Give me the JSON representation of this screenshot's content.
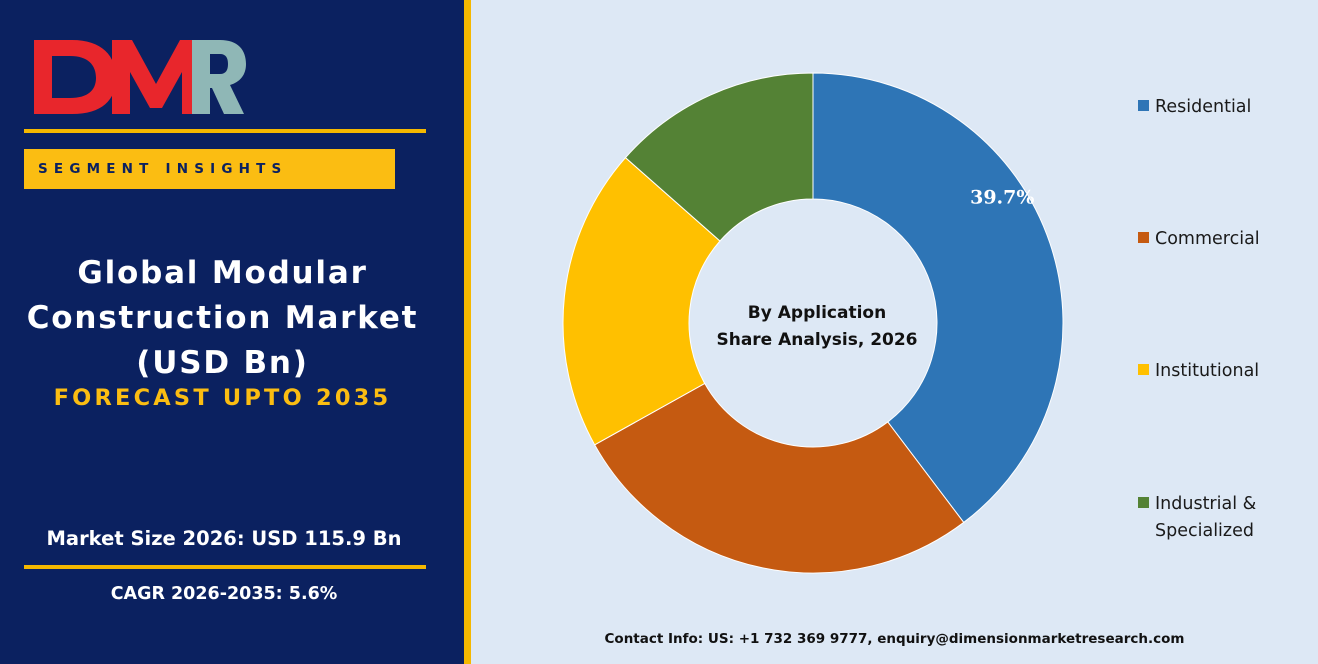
{
  "logo": {
    "text": "DMR"
  },
  "badge": {
    "label": "SEGMENT INSIGHTS"
  },
  "title": {
    "line1": "Global Modular",
    "line2": "Construction Market",
    "line3": "(USD Bn)"
  },
  "forecast": "FORECAST UPTO 2035",
  "market_size": "Market Size 2026: USD 115.9 Bn",
  "cagr": "CAGR 2026-2035: 5.6%",
  "contact": "Contact Info: US: +1 732 369 9777, enquiry@dimensionmarketresearch.com",
  "colors": {
    "navy": "#0b2160",
    "gold": "#fbbd12",
    "residential": "#2e75b6",
    "commercial": "#c55a11",
    "institutional": "#ffc000",
    "industrial": "#548235"
  },
  "chart_data": {
    "type": "pie",
    "donut": true,
    "center_label": [
      "By Application",
      "Share Analysis, 2026"
    ],
    "legend_position": "right",
    "series": [
      {
        "name": "Residential",
        "value": 39.7,
        "label": "39.7%",
        "color": "#2e75b6"
      },
      {
        "name": "Commercial",
        "value": 27.2,
        "label": "",
        "color": "#c55a11"
      },
      {
        "name": "Institutional",
        "value": 19.6,
        "label": "",
        "color": "#ffc000"
      },
      {
        "name": "Industrial & Specialized",
        "value": 13.5,
        "label": "",
        "color": "#548235"
      }
    ]
  }
}
